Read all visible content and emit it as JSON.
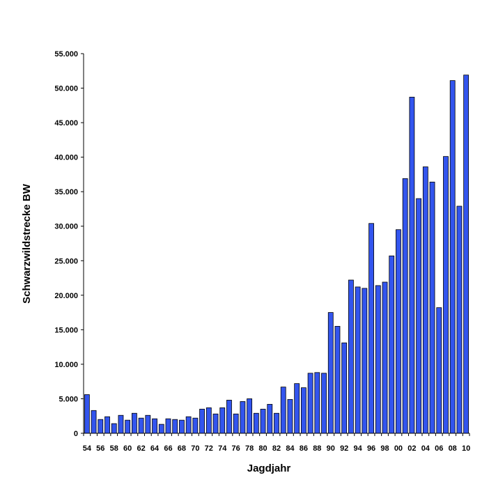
{
  "chart_data": {
    "type": "bar",
    "xlabel": "Jagdjahr",
    "ylabel": "Schwarzwildstrecke BW",
    "ylim": [
      0,
      55000
    ],
    "yticks": [
      0,
      5000,
      10000,
      15000,
      20000,
      25000,
      30000,
      35000,
      40000,
      45000,
      50000,
      55000
    ],
    "ytick_labels": [
      "0",
      "5.000",
      "10.000",
      "15.000",
      "20.000",
      "25.000",
      "30.000",
      "35.000",
      "40.000",
      "45.000",
      "50.000",
      "55.000"
    ],
    "grid": false,
    "legend": "none",
    "bar_color": "#3355EE",
    "categories": [
      "54",
      "55",
      "56",
      "57",
      "58",
      "59",
      "60",
      "61",
      "62",
      "63",
      "64",
      "65",
      "66",
      "67",
      "68",
      "69",
      "70",
      "71",
      "72",
      "73",
      "74",
      "75",
      "76",
      "77",
      "78",
      "79",
      "80",
      "81",
      "82",
      "83",
      "84",
      "85",
      "86",
      "87",
      "88",
      "89",
      "90",
      "91",
      "92",
      "93",
      "94",
      "95",
      "96",
      "97",
      "98",
      "99",
      "00",
      "01",
      "02",
      "03",
      "04",
      "05",
      "06",
      "07",
      "08",
      "09",
      "10"
    ],
    "shown_x_labels": [
      "54",
      "56",
      "58",
      "60",
      "62",
      "64",
      "66",
      "68",
      "70",
      "72",
      "74",
      "76",
      "78",
      "80",
      "82",
      "84",
      "86",
      "88",
      "90",
      "92",
      "94",
      "96",
      "98",
      "00",
      "02",
      "04",
      "06",
      "08",
      "10"
    ],
    "values": [
      5600,
      3300,
      2000,
      2400,
      1400,
      2600,
      1900,
      2900,
      2200,
      2600,
      2100,
      1300,
      2100,
      2000,
      1900,
      2400,
      2200,
      3500,
      3700,
      2800,
      3700,
      4800,
      2800,
      4600,
      5000,
      2900,
      3500,
      4200,
      2900,
      6700,
      4900,
      7200,
      6600,
      8700,
      8800,
      8700,
      17500,
      15500,
      13100,
      22200,
      21200,
      21000,
      30400,
      21400,
      21900,
      25700,
      29500,
      36900,
      48700,
      34000,
      38600,
      36400,
      18200,
      40100,
      51100,
      32900,
      51900
    ]
  }
}
